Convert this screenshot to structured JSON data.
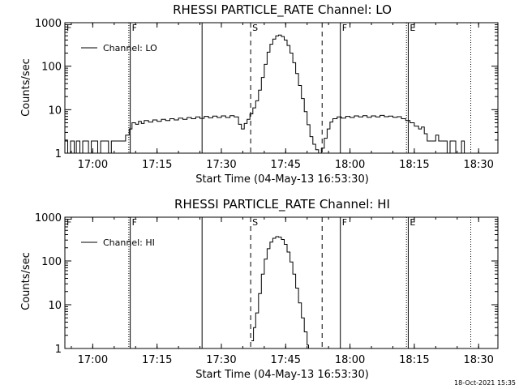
{
  "footer_timestamp": "18-Oct-2021 15:35",
  "chart_data": [
    {
      "type": "line",
      "title": "RHESSI PARTICLE_RATE Channel: LO",
      "xlabel": "Start Time (04-May-13 16:53:30)",
      "ylabel": "Counts/sec",
      "yscale": "log",
      "ylim": [
        1,
        1000
      ],
      "xlim": [
        "16:53:30",
        "18:34:30"
      ],
      "x_ticks": [
        "17:00",
        "17:15",
        "17:30",
        "17:45",
        "18:00",
        "18:15",
        "18:30"
      ],
      "y_ticks": [
        "1",
        "10",
        "100",
        "1000"
      ],
      "legend": {
        "label": "Channel: LO",
        "position": "top-left"
      },
      "markers": [
        {
          "label": "F",
          "time": "16:53:30",
          "style": "solid"
        },
        {
          "label": "F",
          "time": "17:08:45",
          "style": "solid"
        },
        {
          "label": "",
          "time": "17:08:25",
          "style": "dotted"
        },
        {
          "label": "",
          "time": "17:25:30",
          "style": "solid"
        },
        {
          "label": "S",
          "time": "17:36:50",
          "style": "dashed"
        },
        {
          "label": "",
          "time": "17:53:30",
          "style": "dashed"
        },
        {
          "label": "F",
          "time": "17:57:45",
          "style": "solid"
        },
        {
          "label": "E",
          "time": "18:13:35",
          "style": "solid"
        },
        {
          "label": "",
          "time": "18:13:10",
          "style": "dotted"
        },
        {
          "label": "",
          "time": "18:28:10",
          "style": "dotted"
        }
      ],
      "series": [
        {
          "name": "Channel: LO",
          "points": [
            [
              "16:53:30",
              1.9
            ],
            [
              "16:54:10",
              1.0
            ],
            [
              "16:54:50",
              1.9
            ],
            [
              "16:55:40",
              1.0
            ],
            [
              "16:56:10",
              1.9
            ],
            [
              "16:57:00",
              1.0
            ],
            [
              "16:57:40",
              1.9
            ],
            [
              "16:58:20",
              1.9
            ],
            [
              "16:59:00",
              1.0
            ],
            [
              "16:59:40",
              1.9
            ],
            [
              "17:00:30",
              1.9
            ],
            [
              "17:01:10",
              1.0
            ],
            [
              "17:01:50",
              1.9
            ],
            [
              "17:03:00",
              1.9
            ],
            [
              "17:03:40",
              1.0
            ],
            [
              "17:04:20",
              1.9
            ],
            [
              "17:05:00",
              1.9
            ],
            [
              "17:05:40",
              1.9
            ],
            [
              "17:06:20",
              1.9
            ],
            [
              "17:07:00",
              1.9
            ],
            [
              "17:07:40",
              2.6
            ],
            [
              "17:08:30",
              3.6
            ],
            [
              "17:09:10",
              5.0
            ],
            [
              "17:10:00",
              4.6
            ],
            [
              "17:10:40",
              5.4
            ],
            [
              "17:11:20",
              4.8
            ],
            [
              "17:12:00",
              5.6
            ],
            [
              "17:13:00",
              5.2
            ],
            [
              "17:14:00",
              5.8
            ],
            [
              "17:15:00",
              5.4
            ],
            [
              "17:16:00",
              6.0
            ],
            [
              "17:17:00",
              5.6
            ],
            [
              "17:18:00",
              6.2
            ],
            [
              "17:19:00",
              5.8
            ],
            [
              "17:20:00",
              6.4
            ],
            [
              "17:21:00",
              6.0
            ],
            [
              "17:22:00",
              6.6
            ],
            [
              "17:23:00",
              6.2
            ],
            [
              "17:24:00",
              6.8
            ],
            [
              "17:25:00",
              6.3
            ],
            [
              "17:26:00",
              7.0
            ],
            [
              "17:27:00",
              6.5
            ],
            [
              "17:28:00",
              7.1
            ],
            [
              "17:29:00",
              6.6
            ],
            [
              "17:30:00",
              7.2
            ],
            [
              "17:31:00",
              6.6
            ],
            [
              "17:32:00",
              7.3
            ],
            [
              "17:33:00",
              6.8
            ],
            [
              "17:34:00",
              4.6
            ],
            [
              "17:34:40",
              3.6
            ],
            [
              "17:35:20",
              4.8
            ],
            [
              "17:36:00",
              6.0
            ],
            [
              "17:36:40",
              8.0
            ],
            [
              "17:37:20",
              11
            ],
            [
              "17:38:00",
              16
            ],
            [
              "17:38:40",
              28
            ],
            [
              "17:39:20",
              55
            ],
            [
              "17:40:00",
              110
            ],
            [
              "17:40:40",
              210
            ],
            [
              "17:41:20",
              320
            ],
            [
              "17:42:00",
              420
            ],
            [
              "17:42:40",
              500
            ],
            [
              "17:43:20",
              520
            ],
            [
              "17:44:00",
              480
            ],
            [
              "17:44:40",
              400
            ],
            [
              "17:45:20",
              300
            ],
            [
              "17:46:00",
              200
            ],
            [
              "17:46:40",
              120
            ],
            [
              "17:47:20",
              68
            ],
            [
              "17:48:00",
              36
            ],
            [
              "17:48:40",
              18
            ],
            [
              "17:49:20",
              9
            ],
            [
              "17:50:00",
              4.5
            ],
            [
              "17:50:40",
              2.4
            ],
            [
              "17:51:20",
              1.6
            ],
            [
              "17:52:00",
              1.2
            ],
            [
              "17:52:40",
              1.0
            ],
            [
              "17:53:20",
              1.3
            ],
            [
              "17:54:00",
              2.2
            ],
            [
              "17:54:40",
              3.6
            ],
            [
              "17:55:20",
              5.2
            ],
            [
              "17:56:00",
              6.2
            ],
            [
              "17:57:00",
              6.8
            ],
            [
              "17:58:00",
              6.4
            ],
            [
              "17:59:00",
              7.0
            ],
            [
              "18:00:00",
              6.6
            ],
            [
              "18:01:00",
              7.2
            ],
            [
              "18:02:00",
              6.8
            ],
            [
              "18:03:00",
              7.3
            ],
            [
              "18:04:00",
              6.7
            ],
            [
              "18:05:00",
              7.2
            ],
            [
              "18:06:00",
              6.8
            ],
            [
              "18:07:00",
              7.4
            ],
            [
              "18:08:00",
              6.9
            ],
            [
              "18:09:00",
              7.1
            ],
            [
              "18:10:00",
              6.7
            ],
            [
              "18:11:00",
              6.9
            ],
            [
              "18:12:00",
              6.2
            ],
            [
              "18:13:00",
              5.6
            ],
            [
              "18:14:00",
              5.0
            ],
            [
              "18:15:00",
              4.2
            ],
            [
              "18:16:00",
              3.6
            ],
            [
              "18:16:40",
              4.0
            ],
            [
              "18:17:20",
              2.8
            ],
            [
              "18:18:00",
              1.9
            ],
            [
              "18:18:40",
              1.9
            ],
            [
              "18:19:20",
              1.9
            ],
            [
              "18:20:00",
              2.6
            ],
            [
              "18:20:40",
              1.9
            ],
            [
              "18:21:20",
              1.9
            ],
            [
              "18:22:00",
              1.9
            ],
            [
              "18:22:40",
              1.0
            ],
            [
              "18:23:20",
              1.9
            ],
            [
              "18:24:00",
              1.9
            ],
            [
              "18:24:40",
              1.0
            ],
            [
              "18:25:20",
              1.0
            ],
            [
              "18:26:00",
              1.9
            ],
            [
              "18:26:40",
              1.0
            ],
            [
              "18:27:20",
              1.0
            ],
            [
              "18:28:00",
              1.0
            ]
          ]
        }
      ]
    },
    {
      "type": "line",
      "title": "RHESSI PARTICLE_RATE Channel: HI",
      "xlabel": "Start Time (04-May-13 16:53:30)",
      "ylabel": "Counts/sec",
      "yscale": "log",
      "ylim": [
        1,
        1000
      ],
      "xlim": [
        "16:53:30",
        "18:34:30"
      ],
      "x_ticks": [
        "17:00",
        "17:15",
        "17:30",
        "17:45",
        "18:00",
        "18:15",
        "18:30"
      ],
      "y_ticks": [
        "1",
        "10",
        "100",
        "1000"
      ],
      "legend": {
        "label": "Channel: HI",
        "position": "top-left"
      },
      "markers": [
        {
          "label": "F",
          "time": "16:53:30",
          "style": "solid"
        },
        {
          "label": "F",
          "time": "17:08:45",
          "style": "solid"
        },
        {
          "label": "",
          "time": "17:08:25",
          "style": "dotted"
        },
        {
          "label": "",
          "time": "17:25:30",
          "style": "solid"
        },
        {
          "label": "S",
          "time": "17:36:50",
          "style": "dashed"
        },
        {
          "label": "",
          "time": "17:53:30",
          "style": "dashed"
        },
        {
          "label": "F",
          "time": "17:57:45",
          "style": "solid"
        },
        {
          "label": "E",
          "time": "18:13:35",
          "style": "solid"
        },
        {
          "label": "",
          "time": "18:13:10",
          "style": "dotted"
        },
        {
          "label": "",
          "time": "18:28:10",
          "style": "dotted"
        }
      ],
      "series": [
        {
          "name": "Channel: HI",
          "points": [
            [
              "17:37:00",
              1.5
            ],
            [
              "17:37:30",
              3.0
            ],
            [
              "17:38:00",
              6.5
            ],
            [
              "17:38:40",
              18
            ],
            [
              "17:39:20",
              50
            ],
            [
              "17:40:00",
              110
            ],
            [
              "17:40:40",
              190
            ],
            [
              "17:41:20",
              270
            ],
            [
              "17:42:00",
              330
            ],
            [
              "17:42:40",
              360
            ],
            [
              "17:43:20",
              350
            ],
            [
              "17:44:00",
              310
            ],
            [
              "17:44:40",
              240
            ],
            [
              "17:45:20",
              160
            ],
            [
              "17:46:00",
              95
            ],
            [
              "17:46:40",
              50
            ],
            [
              "17:47:20",
              24
            ],
            [
              "17:48:00",
              11
            ],
            [
              "17:48:40",
              5
            ],
            [
              "17:49:20",
              2.4
            ],
            [
              "17:50:00",
              1.2
            ],
            [
              "17:50:20",
              1.0
            ]
          ]
        }
      ]
    }
  ]
}
